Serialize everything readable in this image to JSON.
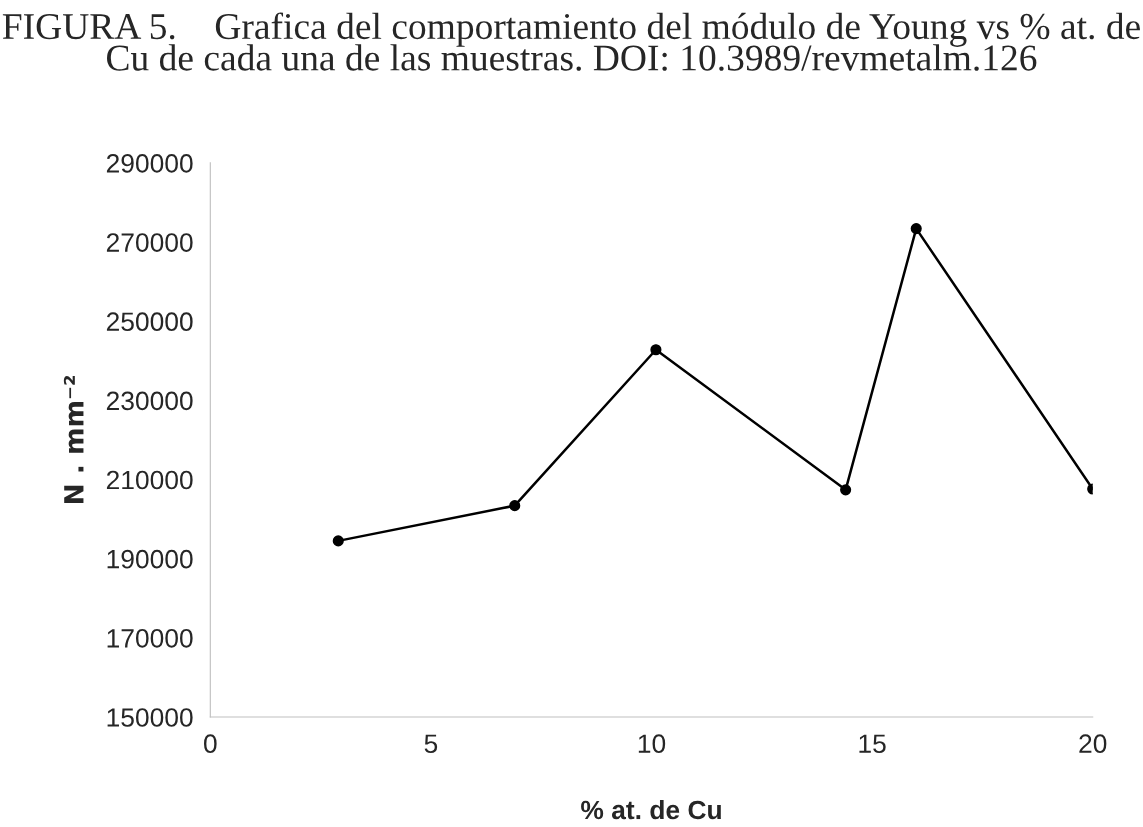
{
  "chart_data": {
    "type": "line",
    "title": "FIGURA 5.    Grafica del comportamiento del módulo de Young vs % at. de Cu de cada una de las muestras. DOI: 10.3989/revmetalm.126",
    "xlabel": "% at. de Cu",
    "ylabel": "N . mm⁻²",
    "x": [
      2.9,
      6.9,
      10.1,
      14.4,
      16.0,
      20.0
    ],
    "series": [
      {
        "color": "#000000",
        "values": [
          194500,
          203400,
          242800,
          207400,
          273400,
          207600
        ]
      }
    ],
    "xlim": [
      0,
      20
    ],
    "xticks": [
      0,
      5,
      10,
      15,
      20
    ],
    "ylim": [
      150000,
      290000
    ],
    "yticks": [
      150000,
      170000,
      190000,
      210000,
      230000,
      250000,
      270000,
      290000
    ],
    "grid": false,
    "legend": false,
    "marker": "circle",
    "line_style": "solid"
  }
}
